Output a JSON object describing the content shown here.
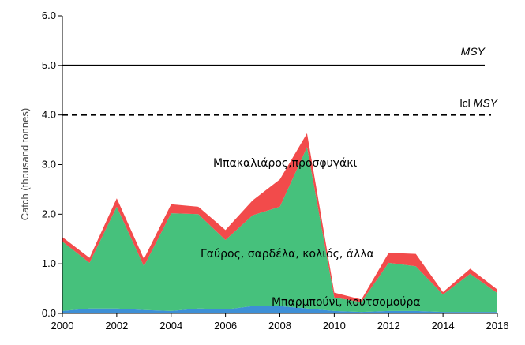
{
  "chart_data": {
    "type": "area",
    "stacked": true,
    "x": [
      2000,
      2001,
      2002,
      2003,
      2004,
      2005,
      2006,
      2007,
      2008,
      2009,
      2010,
      2011,
      2012,
      2013,
      2014,
      2015,
      2016
    ],
    "series": [
      {
        "name": "Μπαρμπούνι, κουτσομούρα",
        "color": "#3d8fd6",
        "values": [
          0.05,
          0.1,
          0.1,
          0.07,
          0.05,
          0.1,
          0.08,
          0.15,
          0.15,
          0.1,
          0.05,
          0.03,
          0.05,
          0.05,
          0.03,
          0.03,
          0.03
        ]
      },
      {
        "name": "Γαύρος, σαρδέλα, κολιός, άλλα",
        "color": "#46c17c",
        "values": [
          1.4,
          0.92,
          2.05,
          0.88,
          1.97,
          1.9,
          1.4,
          1.83,
          2.0,
          3.25,
          0.27,
          0.2,
          0.97,
          0.9,
          0.35,
          0.77,
          0.38
        ]
      },
      {
        "name": "Μπακαλιάρος,προσφυγάκι",
        "color": "#f24b4b",
        "values": [
          0.09,
          0.1,
          0.17,
          0.15,
          0.18,
          0.15,
          0.2,
          0.3,
          0.55,
          0.28,
          0.1,
          0.05,
          0.2,
          0.25,
          0.05,
          0.1,
          0.07
        ]
      }
    ],
    "reference_lines": [
      {
        "label_prefix": "",
        "label_italic": "MSY",
        "value": 5.0,
        "style": "solid"
      },
      {
        "label_prefix": "lcl ",
        "label_italic": "MSY",
        "value": 4.0,
        "style": "dashed"
      }
    ],
    "annotations": {
      "red": "Μπακαλιάρος,προσφυγάκι",
      "green": "Γαύρος, σαρδέλα, κολιός, άλλα",
      "blue": "Μπαρμπούνι, κουτσομούρα"
    },
    "ylabel": "Catch (thousand tonnes)",
    "xlabel": "",
    "xlim": [
      2000,
      2016
    ],
    "ylim": [
      0,
      6
    ],
    "xticks": [
      "2000",
      "2002",
      "2004",
      "2006",
      "2008",
      "2010",
      "2012",
      "2014",
      "2016"
    ],
    "yticks": [
      "0.0",
      "1.0",
      "2.0",
      "3.0",
      "4.0",
      "5.0",
      "6.0"
    ],
    "grid": false,
    "legend": "none"
  }
}
